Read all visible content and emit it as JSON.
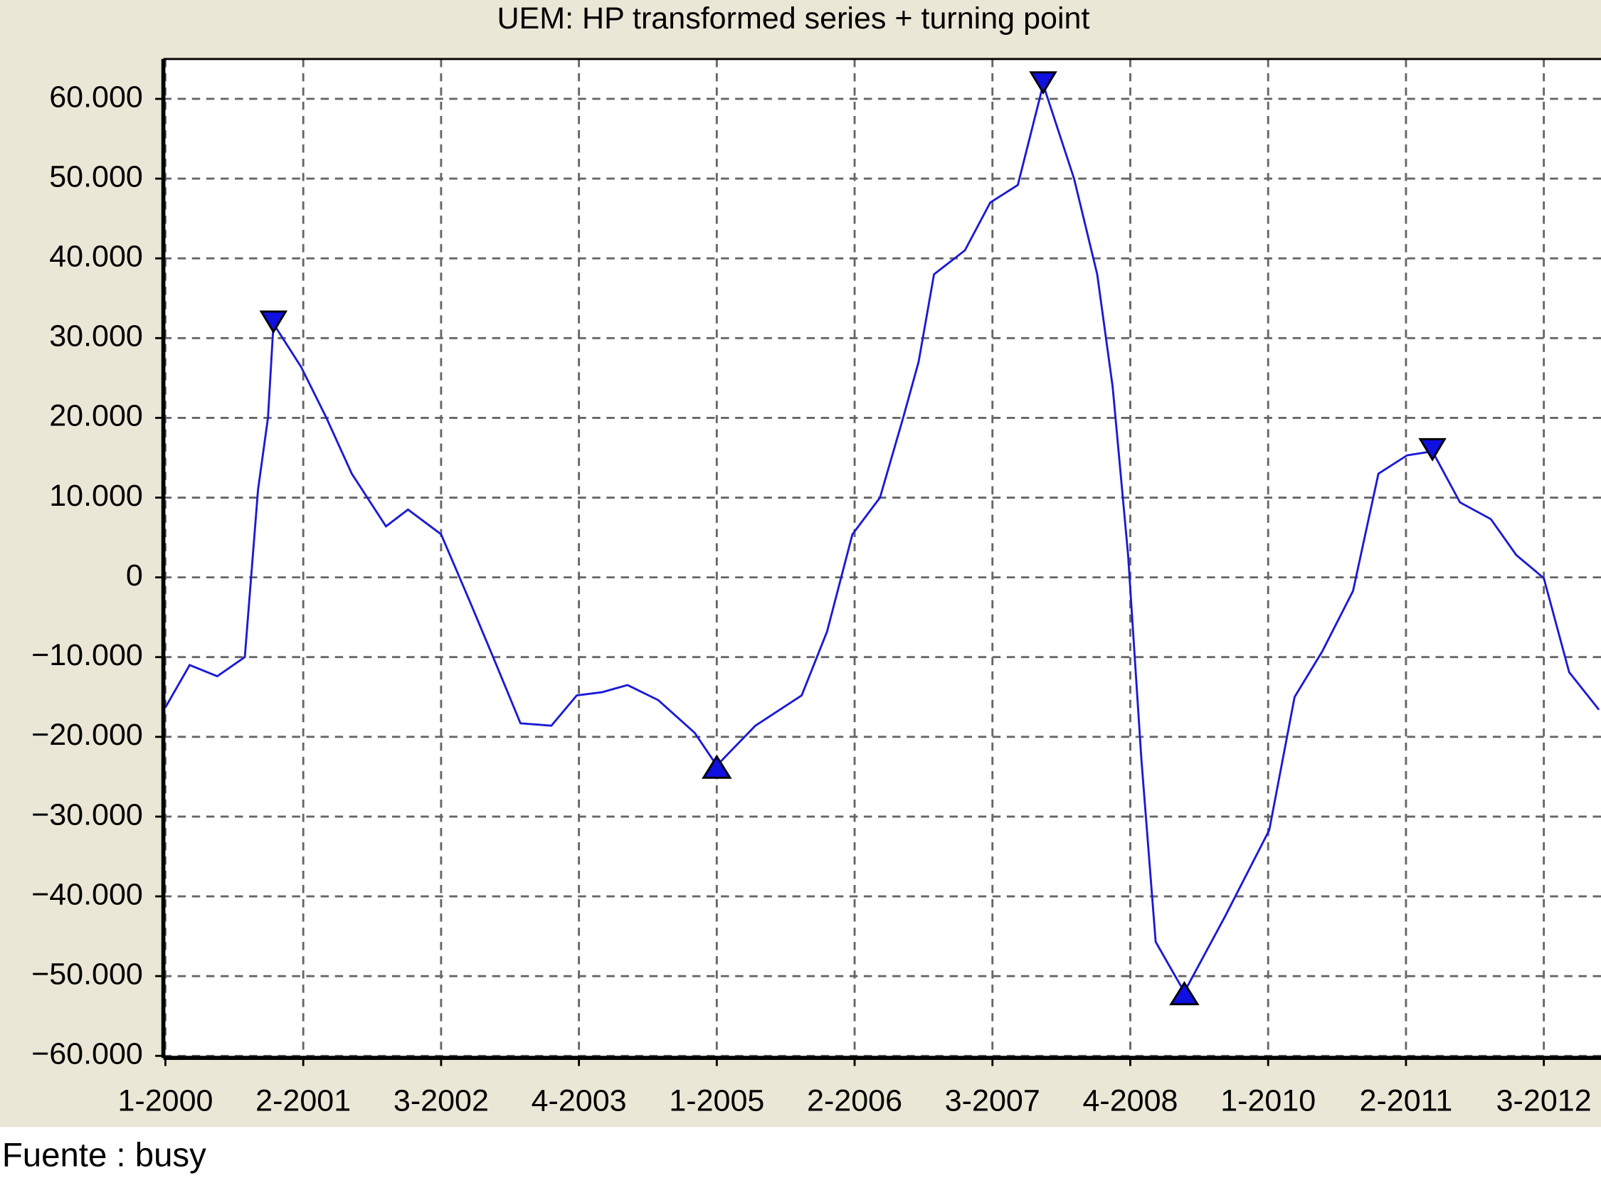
{
  "chart_data": {
    "type": "line",
    "title": "UEM: HP transformed series + turning point",
    "source": "Fuente : busy",
    "color": "#1a1ad6",
    "marker_color": "#1010e0",
    "grid": true,
    "x": [
      2000.0,
      2000.22,
      2000.47,
      2000.72,
      2000.84,
      2000.93,
      2000.98,
      2001.23,
      2001.46,
      2001.69,
      2002.0,
      2002.2,
      2002.5,
      2002.76,
      2002.99,
      2003.22,
      2003.5,
      2003.73,
      2003.96,
      2004.19,
      2004.47,
      2004.8,
      2005.0,
      2005.35,
      2005.77,
      2006.0,
      2006.23,
      2006.48,
      2006.69,
      2006.83,
      2006.97,
      2007.25,
      2007.48,
      2007.73,
      2007.96,
      2008.24,
      2008.45,
      2008.59,
      2008.73,
      2008.85,
      2008.98,
      2009.24,
      2009.61,
      2010.01,
      2010.24,
      2010.49,
      2010.77,
      2011.0,
      2011.26,
      2011.49,
      2011.74,
      2012.02,
      2012.25,
      2012.5,
      2012.73,
      2013.0
    ],
    "values": [
      -16300,
      -11000,
      -12400,
      -10000,
      11000,
      20000,
      31800,
      26400,
      20000,
      13000,
      6400,
      8500,
      5400,
      -3000,
      -10600,
      -18300,
      -18600,
      -14800,
      -14400,
      -13500,
      -15400,
      -19500,
      -23600,
      -18600,
      -14800,
      -6800,
      5400,
      10000,
      20000,
      27000,
      38000,
      41000,
      47000,
      49200,
      61800,
      50000,
      38000,
      23900,
      2800,
      -22700,
      -45700,
      -52000,
      -42500,
      -31700,
      -15000,
      -9300,
      -1700,
      13000,
      15300,
      15800,
      9400,
      7300,
      2800,
      -100,
      -11900,
      -16600
    ],
    "turning_points": {
      "peaks": {
        "x": [
          2000.98,
          2007.96,
          2011.49
        ],
        "values": [
          31800,
          61800,
          15800
        ]
      },
      "troughs": {
        "x": [
          2005.0,
          2009.24
        ],
        "values": [
          -23600,
          -52000
        ]
      }
    },
    "xlim": [
      2000,
      2013
    ],
    "xticks": [
      {
        "value": 2000,
        "label": "1-2000"
      },
      {
        "value": 2001.25,
        "label": "2-2001"
      },
      {
        "value": 2002.5,
        "label": "3-2002"
      },
      {
        "value": 2003.75,
        "label": "4-2003"
      },
      {
        "value": 2005,
        "label": "1-2005"
      },
      {
        "value": 2006.25,
        "label": "2-2006"
      },
      {
        "value": 2007.5,
        "label": "3-2007"
      },
      {
        "value": 2008.75,
        "label": "4-2008"
      },
      {
        "value": 2010,
        "label": "1-2010"
      },
      {
        "value": 2011.25,
        "label": "2-2011"
      },
      {
        "value": 2012.5,
        "label": "3-2012"
      }
    ],
    "ylim": [
      -60000,
      65000
    ],
    "yticks": [
      {
        "value": 60000,
        "label": "60.000"
      },
      {
        "value": 50000,
        "label": "50.000"
      },
      {
        "value": 40000,
        "label": "40.000"
      },
      {
        "value": 30000,
        "label": "30.000"
      },
      {
        "value": 20000,
        "label": "20.000"
      },
      {
        "value": 10000,
        "label": "10.000"
      },
      0,
      {
        "value": -10000,
        "label": "−10.000"
      },
      {
        "value": -20000,
        "label": "−20.000"
      },
      {
        "value": -30000,
        "label": "−30.000"
      },
      {
        "value": -40000,
        "label": "−40.000"
      },
      {
        "value": -50000,
        "label": "−50.000"
      },
      {
        "value": -60000,
        "label": "−60.000"
      }
    ]
  }
}
